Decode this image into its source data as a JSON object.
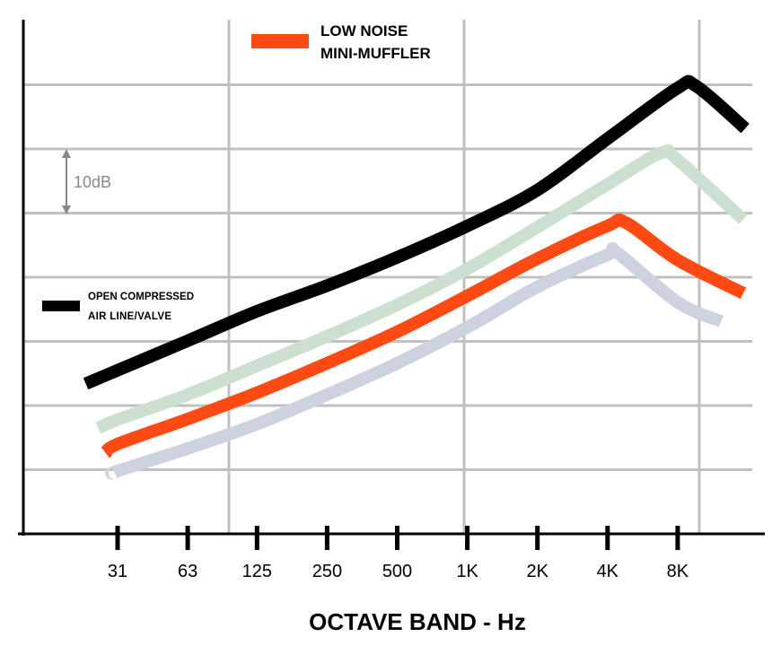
{
  "chart_data": {
    "type": "line",
    "title": "",
    "xlabel": "OCTAVE BAND - Hz",
    "ylabel": "",
    "x_scale": "log2 (octave bands)",
    "categories": [
      "31",
      "63",
      "125",
      "250",
      "500",
      "1K",
      "2K",
      "4K",
      "8K"
    ],
    "category_hz": [
      31.5,
      63,
      125,
      250,
      500,
      1000,
      2000,
      4000,
      8000
    ],
    "y_unit": "dB (relative, 10 dB per gridline, no tick labels)",
    "ylim": [
      0,
      80
    ],
    "grid": true,
    "scale_annotation": "10dB",
    "legend": [
      {
        "label_lines": [
          "LOW NOISE",
          "MINI-MUFFLER"
        ],
        "color": "#ff4a14",
        "placement": "top-center"
      },
      {
        "label_lines": [
          "OPEN COMPRESSED",
          "AIR LINE/VALVE"
        ],
        "color": "#000000",
        "placement": "middle-left"
      }
    ],
    "series": [
      {
        "name": "OPEN COMPRESSED AIR LINE/VALVE",
        "color": "#000000",
        "x": [
          23,
          31.5,
          63,
          125,
          250,
          500,
          1000,
          2000,
          4000,
          8000,
          9600,
          15600
        ],
        "y": [
          23.4,
          25.5,
          30.1,
          34.7,
          38.7,
          43.1,
          48.0,
          53.6,
          61.6,
          69.5,
          69.8,
          63.2
        ]
      },
      {
        "color": "#cce0cf",
        "x": [
          26,
          31.5,
          63,
          125,
          250,
          500,
          1000,
          2000,
          4000,
          6800,
          8000,
          15300
        ],
        "y": [
          16.5,
          17.8,
          21.7,
          26.2,
          30.8,
          35.7,
          41.3,
          47.8,
          54.5,
          59.4,
          58.3,
          49.0
        ]
      },
      {
        "name": "LOW NOISE MINI-MUFFLER",
        "color": "#ff4a14",
        "x": [
          28,
          31.5,
          63,
          125,
          250,
          500,
          1000,
          2000,
          4000,
          4800,
          8000,
          15300
        ],
        "y": [
          12.6,
          14.0,
          17.9,
          22.0,
          26.6,
          31.5,
          37.1,
          42.9,
          48.0,
          48.5,
          42.7,
          37.5
        ]
      },
      {
        "color": "#cdd2e1",
        "x": [
          30.6,
          31.5,
          63,
          125,
          250,
          500,
          1000,
          2000,
          4000,
          4400,
          8000,
          12300
        ],
        "y": [
          9.5,
          9.8,
          13.3,
          17.1,
          21.7,
          26.6,
          32.2,
          38.5,
          43.5,
          43.8,
          36.1,
          33.1
        ]
      }
    ]
  }
}
